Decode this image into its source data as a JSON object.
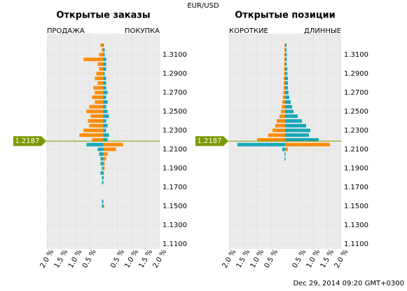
{
  "title": "EUR/USD",
  "footer": "Dec 29, 2014 09:20 GMT+0300",
  "chart_data": [
    {
      "type": "bar",
      "title": "Открытые заказы",
      "categories": [
        1.32,
        1.315,
        1.31,
        1.305,
        1.3,
        1.295,
        1.29,
        1.285,
        1.28,
        1.275,
        1.27,
        1.265,
        1.26,
        1.255,
        1.25,
        1.245,
        1.24,
        1.235,
        1.23,
        1.225,
        1.22,
        1.215,
        1.21,
        1.205,
        1.2,
        1.195,
        1.19,
        1.185,
        1.18,
        1.175,
        1.17,
        1.165,
        1.16,
        1.155,
        1.15,
        1.145,
        1.14
      ],
      "series": [
        {
          "name": "ПРОДАЖА",
          "side": "left",
          "color": "#ff8c00",
          "color_below": "#16a8b8",
          "values": [
            0.1,
            0.05,
            0.15,
            0.7,
            0.2,
            0.15,
            0.25,
            0.3,
            0.2,
            0.35,
            0.3,
            0.4,
            0.3,
            0.5,
            0.6,
            0.45,
            0.55,
            0.5,
            0.7,
            0.85,
            0.4,
            0.6,
            0.2,
            0.15,
            0.1,
            0.1,
            0.05,
            0.1,
            0.05,
            0.05,
            0,
            0,
            0,
            0.05,
            0.05,
            0,
            0
          ]
        },
        {
          "name": "ПОКУПКА",
          "side": "right",
          "color": "#16a8b8",
          "color_below": "#ff8c00",
          "values": [
            0.02,
            0.05,
            0.05,
            0.1,
            0.1,
            0.1,
            0.05,
            0.1,
            0.1,
            0.1,
            0.15,
            0.1,
            0.15,
            0.1,
            0.15,
            0.2,
            0.1,
            0.15,
            0.1,
            0.2,
            0.15,
            0.7,
            0.45,
            0.15,
            0.1,
            0.05,
            0.05,
            0.02,
            0.02,
            0,
            0,
            0,
            0,
            0,
            0.03,
            0,
            0
          ]
        }
      ],
      "xlim": [
        -2,
        2
      ],
      "xticks": [
        {
          "value": -2,
          "label": "2.0 %"
        },
        {
          "value": -1.5,
          "label": "1.5 %"
        },
        {
          "value": -1,
          "label": "1.0 %"
        },
        {
          "value": -0.5,
          "label": "0.5 %"
        },
        {
          "value": 0.5,
          "label": "0.5 %"
        },
        {
          "value": 1,
          "label": "1.0 %"
        },
        {
          "value": 1.5,
          "label": "1.5 %"
        },
        {
          "value": 2,
          "label": "2.0 %"
        }
      ],
      "ylim": [
        1.1048,
        1.3322
      ],
      "yticks": [
        {
          "value": 1.31,
          "label": "1.3100"
        },
        {
          "value": 1.29,
          "label": "1.2900"
        },
        {
          "value": 1.27,
          "label": "1.2700"
        },
        {
          "value": 1.25,
          "label": "1.2500"
        },
        {
          "value": 1.23,
          "label": "1.2300"
        },
        {
          "value": 1.21,
          "label": "1.2100"
        },
        {
          "value": 1.19,
          "label": "1.1900"
        },
        {
          "value": 1.17,
          "label": "1.1700"
        },
        {
          "value": 1.15,
          "label": "1.1500"
        },
        {
          "value": 1.13,
          "label": "1.1300"
        },
        {
          "value": 1.11,
          "label": "1.1100"
        }
      ],
      "current_price": 1.2187,
      "grid": true
    },
    {
      "type": "bar",
      "title": "Открытые позиции",
      "categories": [
        1.32,
        1.315,
        1.31,
        1.305,
        1.3,
        1.295,
        1.29,
        1.285,
        1.28,
        1.275,
        1.27,
        1.265,
        1.26,
        1.255,
        1.25,
        1.245,
        1.24,
        1.235,
        1.23,
        1.225,
        1.22,
        1.215,
        1.21,
        1.205,
        1.2,
        1.195,
        1.19,
        1.185,
        1.18,
        1.175,
        1.17,
        1.165,
        1.16,
        1.155,
        1.15,
        1.145,
        1.14
      ],
      "series": [
        {
          "name": "КОРОТКИЕ",
          "side": "left",
          "color": "#ff8c00",
          "color_below": "#16a8b8",
          "values": [
            0.02,
            0.02,
            0.03,
            0.03,
            0.03,
            0.04,
            0.04,
            0.05,
            0.05,
            0.05,
            0.06,
            0.08,
            0.1,
            0.12,
            0.15,
            0.2,
            0.3,
            0.35,
            0.45,
            0.6,
            1.0,
            1.7,
            0.1,
            0.02,
            0.02,
            0,
            0,
            0,
            0,
            0,
            0,
            0,
            0,
            0,
            0,
            0,
            0
          ]
        },
        {
          "name": "ДЛИННЫЕ",
          "side": "right",
          "color": "#16a8b8",
          "color_below": "#ff8c00",
          "values": [
            0.05,
            0.05,
            0.06,
            0.06,
            0.05,
            0.08,
            0.08,
            0.1,
            0.1,
            0.1,
            0.12,
            0.15,
            0.2,
            0.25,
            0.3,
            0.45,
            0.6,
            0.75,
            0.9,
            0.85,
            1.2,
            1.6,
            0.1,
            0.02,
            0.02,
            0,
            0,
            0,
            0,
            0,
            0,
            0,
            0,
            0,
            0,
            0,
            0
          ]
        }
      ],
      "xlim": [
        -2,
        2
      ],
      "xticks": [
        {
          "value": -2,
          "label": "2.0 %"
        },
        {
          "value": -1.5,
          "label": "1.5 %"
        },
        {
          "value": -1,
          "label": "1.0 %"
        },
        {
          "value": -0.5,
          "label": "0.5 %"
        },
        {
          "value": 0.5,
          "label": "0.5 %"
        },
        {
          "value": 1,
          "label": "1.0 %"
        },
        {
          "value": 1.5,
          "label": "1.5 %"
        },
        {
          "value": 2,
          "label": "2.0 %"
        }
      ],
      "ylim": [
        1.1048,
        1.3322
      ],
      "yticks": [
        {
          "value": 1.31,
          "label": "1.3100"
        },
        {
          "value": 1.29,
          "label": "1.2900"
        },
        {
          "value": 1.27,
          "label": "1.2700"
        },
        {
          "value": 1.25,
          "label": "1.2500"
        },
        {
          "value": 1.23,
          "label": "1.2300"
        },
        {
          "value": 1.21,
          "label": "1.2100"
        },
        {
          "value": 1.19,
          "label": "1.1900"
        },
        {
          "value": 1.17,
          "label": "1.1700"
        },
        {
          "value": 1.15,
          "label": "1.1500"
        },
        {
          "value": 1.13,
          "label": "1.1300"
        },
        {
          "value": 1.11,
          "label": "1.1100"
        }
      ],
      "current_price": 1.2187,
      "grid": true
    }
  ]
}
